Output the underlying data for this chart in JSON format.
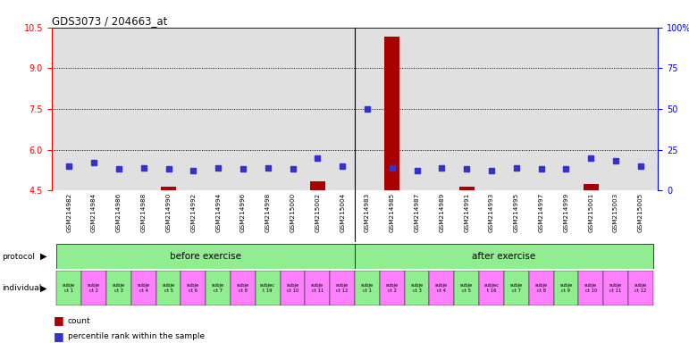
{
  "title": "GDS3073 / 204663_at",
  "samples": [
    "GSM214982",
    "GSM214984",
    "GSM214986",
    "GSM214988",
    "GSM214990",
    "GSM214992",
    "GSM214994",
    "GSM214996",
    "GSM214998",
    "GSM215000",
    "GSM215002",
    "GSM215004",
    "GSM214983",
    "GSM214985",
    "GSM214987",
    "GSM214989",
    "GSM214991",
    "GSM214993",
    "GSM214995",
    "GSM214997",
    "GSM214999",
    "GSM215001",
    "GSM215003",
    "GSM215005"
  ],
  "count_values": [
    4.5,
    4.5,
    4.5,
    4.5,
    4.62,
    4.5,
    4.5,
    4.5,
    4.5,
    4.5,
    4.82,
    4.5,
    4.5,
    10.15,
    4.5,
    4.5,
    4.62,
    4.5,
    4.5,
    4.5,
    4.5,
    4.72,
    4.5,
    4.5
  ],
  "percentile_values": [
    15,
    17,
    13,
    14,
    13,
    12,
    14,
    13,
    14,
    13,
    20,
    15,
    50,
    14,
    12,
    14,
    13,
    12,
    14,
    13,
    13,
    20,
    18,
    15
  ],
  "individuals": [
    "subje\nct 1",
    "subje\nct 2",
    "subje\nct 3",
    "subje\nct 4",
    "subje\nct 5",
    "subje\nct 6",
    "subje\nct 7",
    "subje\nct 8",
    "subjec\nt 19",
    "subje\nct 10",
    "subje\nct 11",
    "subje\nct 12",
    "subje\nct 1",
    "subje\nct 2",
    "subje\nct 3",
    "subje\nct 4",
    "subje\nct 5",
    "subjec\nt 16",
    "subje\nct 7",
    "subje\nct 8",
    "subje\nct 9",
    "subje\nct 10",
    "subje\nct 11",
    "subje\nct 12"
  ],
  "individual_colors": [
    "#90EE90",
    "#FF80FF",
    "#90EE90",
    "#FF80FF",
    "#90EE90",
    "#FF80FF",
    "#90EE90",
    "#FF80FF",
    "#90EE90",
    "#FF80FF",
    "#FF80FF",
    "#FF80FF",
    "#90EE90",
    "#FF80FF",
    "#90EE90",
    "#FF80FF",
    "#90EE90",
    "#FF80FF",
    "#90EE90",
    "#FF80FF",
    "#90EE90",
    "#FF80FF",
    "#FF80FF",
    "#FF80FF"
  ],
  "ylim_left": [
    4.5,
    10.5
  ],
  "yticks_left": [
    4.5,
    6.0,
    7.5,
    9.0,
    10.5
  ],
  "ylim_right": [
    0,
    100
  ],
  "yticks_right": [
    0,
    25,
    50,
    75,
    100
  ],
  "bar_color": "#AA0000",
  "dot_color": "#3333CC",
  "background_color": "#E0E0E0",
  "n_before": 12,
  "n_after": 12
}
